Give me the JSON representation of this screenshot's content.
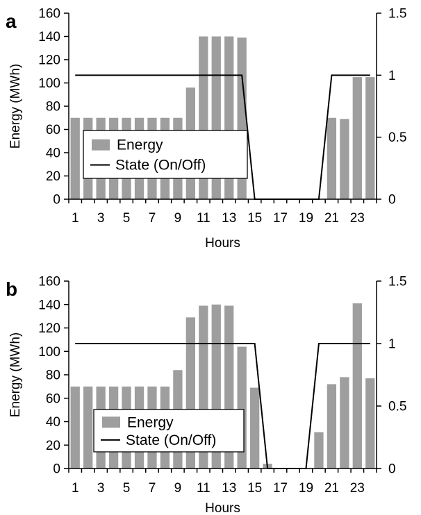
{
  "chart_data": [
    {
      "panel_label": "a",
      "type": "bar",
      "xlabel": "Hours",
      "ylabel": "Energy (MWh)",
      "ylim": [
        0,
        160
      ],
      "y_ticks": [
        "0",
        "20",
        "40",
        "60",
        "80",
        "100",
        "120",
        "140",
        "160"
      ],
      "y2lim": [
        0,
        1.5
      ],
      "y2_ticks": [
        "0",
        "0.5",
        "1",
        "1.5"
      ],
      "x_tick_labels": [
        "1",
        "3",
        "5",
        "7",
        "9",
        "11",
        "13",
        "15",
        "17",
        "19",
        "21",
        "23"
      ],
      "categories": [
        1,
        2,
        3,
        4,
        5,
        6,
        7,
        8,
        9,
        10,
        11,
        12,
        13,
        14,
        15,
        16,
        17,
        18,
        19,
        20,
        21,
        22,
        23,
        24
      ],
      "series": [
        {
          "name": "Energy",
          "type": "bar",
          "axis": "left",
          "values": [
            70,
            70,
            70,
            70,
            70,
            70,
            70,
            70,
            70,
            96,
            140,
            140,
            140,
            139,
            0,
            0,
            0,
            0,
            0,
            0,
            70,
            69,
            105,
            105
          ]
        },
        {
          "name": "State (On/Off)",
          "type": "line",
          "axis": "right",
          "values": [
            1,
            1,
            1,
            1,
            1,
            1,
            1,
            1,
            1,
            1,
            1,
            1,
            1,
            1,
            0,
            0,
            0,
            0,
            0,
            0,
            1,
            1,
            1,
            1
          ]
        }
      ],
      "legend": [
        "Energy",
        "State (On/Off)"
      ],
      "legend_position": "bottom-left",
      "grid": false
    },
    {
      "panel_label": "b",
      "type": "bar",
      "xlabel": "Hours",
      "ylabel": "Energy (MWh)",
      "ylim": [
        0,
        160
      ],
      "y_ticks": [
        "0",
        "20",
        "40",
        "60",
        "80",
        "100",
        "120",
        "140",
        "160"
      ],
      "y2lim": [
        0,
        1.5
      ],
      "y2_ticks": [
        "0",
        "0.5",
        "1",
        "1.5"
      ],
      "x_tick_labels": [
        "1",
        "3",
        "5",
        "7",
        "9",
        "11",
        "13",
        "15",
        "17",
        "19",
        "21",
        "23"
      ],
      "categories": [
        1,
        2,
        3,
        4,
        5,
        6,
        7,
        8,
        9,
        10,
        11,
        12,
        13,
        14,
        15,
        16,
        17,
        18,
        19,
        20,
        21,
        22,
        23,
        24
      ],
      "series": [
        {
          "name": "Energy",
          "type": "bar",
          "axis": "left",
          "values": [
            70,
            70,
            70,
            70,
            70,
            70,
            70,
            70,
            84,
            129,
            139,
            140,
            139,
            104,
            69,
            4,
            0,
            0,
            0,
            31,
            72,
            78,
            141,
            77
          ]
        },
        {
          "name": "State (On/Off)",
          "type": "line",
          "axis": "right",
          "values": [
            1,
            1,
            1,
            1,
            1,
            1,
            1,
            1,
            1,
            1,
            1,
            1,
            1,
            1,
            1,
            0,
            0,
            0,
            0,
            1,
            1,
            1,
            1,
            1
          ]
        }
      ],
      "legend": [
        "Energy",
        "State (On/Off)"
      ],
      "legend_position": "bottom-left",
      "grid": false
    }
  ],
  "colors": {
    "bar": "#9e9e9e",
    "line": "#000000",
    "axis": "#000000",
    "legend_border": "#000000",
    "background": "#ffffff"
  }
}
